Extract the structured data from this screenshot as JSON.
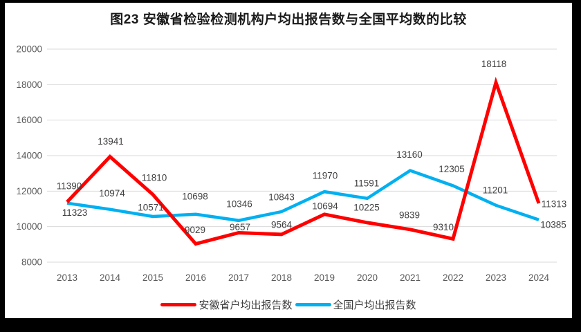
{
  "header": {
    "title": "图23 安徽省检验检测机构户均出报告数与全国平均数的比较"
  },
  "legend": {
    "items": [
      {
        "label": "安徽省户均出报告数",
        "color": "#ff0000"
      },
      {
        "label": "全国户均出报告数",
        "color": "#00b0f0"
      }
    ]
  },
  "chart_data": {
    "type": "line",
    "title": "图23 安徽省检验检测机构户均出报告数与全国平均数的比较",
    "categories": [
      "2013",
      "2014",
      "2015",
      "2016",
      "2017",
      "2018",
      "2019",
      "2020",
      "2021",
      "2022",
      "2023",
      "2024"
    ],
    "series": [
      {
        "name": "安徽省户均出报告数",
        "color": "#ff0000",
        "values": [
          11390,
          13941,
          11810,
          9029,
          9657,
          9564,
          10694,
          10225,
          9839,
          9310,
          18118,
          11313
        ],
        "label_offsets": [
          [
            3,
            -23
          ],
          [
            1,
            -22
          ],
          [
            2,
            -24
          ],
          [
            -1,
            -20
          ],
          [
            2,
            -8
          ],
          [
            0,
            -14
          ],
          [
            1,
            -12
          ],
          [
            -1,
            -22
          ],
          [
            -1,
            -21
          ],
          [
            -14,
            -17
          ],
          [
            -3,
            -27
          ],
          [
            22,
            1
          ]
        ]
      },
      {
        "name": "全国户均出报告数",
        "color": "#00b0f0",
        "values": [
          11323,
          10974,
          10571,
          10698,
          10346,
          10843,
          11970,
          11591,
          13160,
          12305,
          11201,
          10385
        ],
        "label_offsets": [
          [
            11,
            14
          ],
          [
            3,
            -23
          ],
          [
            -3,
            -13
          ],
          [
            -1,
            -26
          ],
          [
            1,
            -24
          ],
          [
            0,
            -21
          ],
          [
            1,
            -23
          ],
          [
            -1,
            -22
          ],
          [
            -1,
            -23
          ],
          [
            -2,
            -24
          ],
          [
            -1,
            -22
          ],
          [
            21,
            7
          ]
        ]
      }
    ],
    "ylim": [
      8000,
      20000
    ],
    "y_ticks": [
      20000,
      18000,
      16000,
      14000,
      12000,
      10000,
      8000
    ],
    "grid": true,
    "legend_position": "bottom",
    "gridline_color": "#d9d9d9",
    "axis_text_color": "#595959",
    "label_text_color": "#404040"
  }
}
